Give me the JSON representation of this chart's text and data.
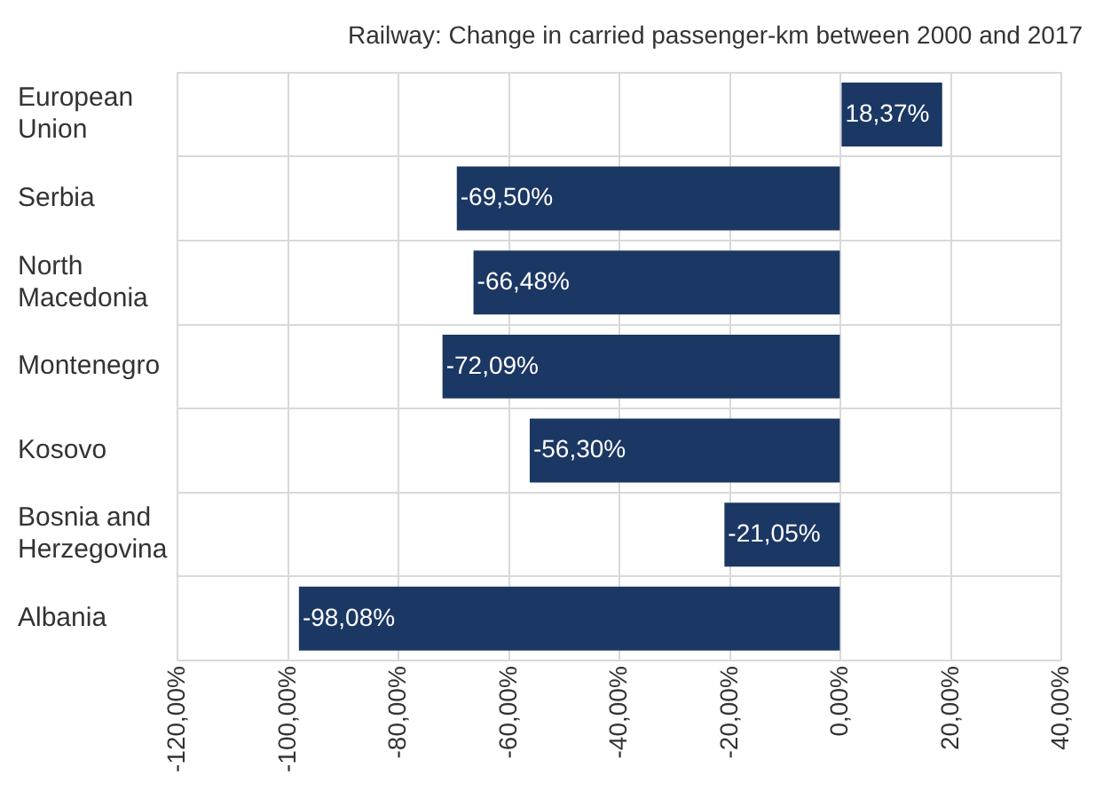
{
  "chart_data": {
    "type": "bar",
    "orientation": "horizontal",
    "title": "Railway: Change in carried passenger-km between 2000 and 2017",
    "categories": [
      "European Union",
      "Serbia",
      "North Macedonia",
      "Montenegro",
      "Kosovo",
      "Bosnia and Herzegovina",
      "Albania"
    ],
    "values": [
      18.37,
      -69.5,
      -66.48,
      -72.09,
      -56.3,
      -21.05,
      -98.08
    ],
    "value_labels": [
      "18,37%",
      "-69,50%",
      "-66,48%",
      "-72,09%",
      "-56,30%",
      "-21,05%",
      "-98,08%"
    ],
    "color": "#1b3764",
    "xlim": [
      -120,
      40
    ],
    "xticks": [
      {
        "value": -120,
        "label": "-120,00%"
      },
      {
        "value": -100,
        "label": "-100,00%"
      },
      {
        "value": -80,
        "label": "-80,00%"
      },
      {
        "value": -60,
        "label": "-60,00%"
      },
      {
        "value": -40,
        "label": "-40,00%"
      },
      {
        "value": -20,
        "label": "-20,00%"
      },
      {
        "value": 0,
        "label": "0,00%"
      },
      {
        "value": 20,
        "label": "20,00%"
      },
      {
        "value": 40,
        "label": "40,00%"
      }
    ],
    "grid": true,
    "legend": false
  }
}
